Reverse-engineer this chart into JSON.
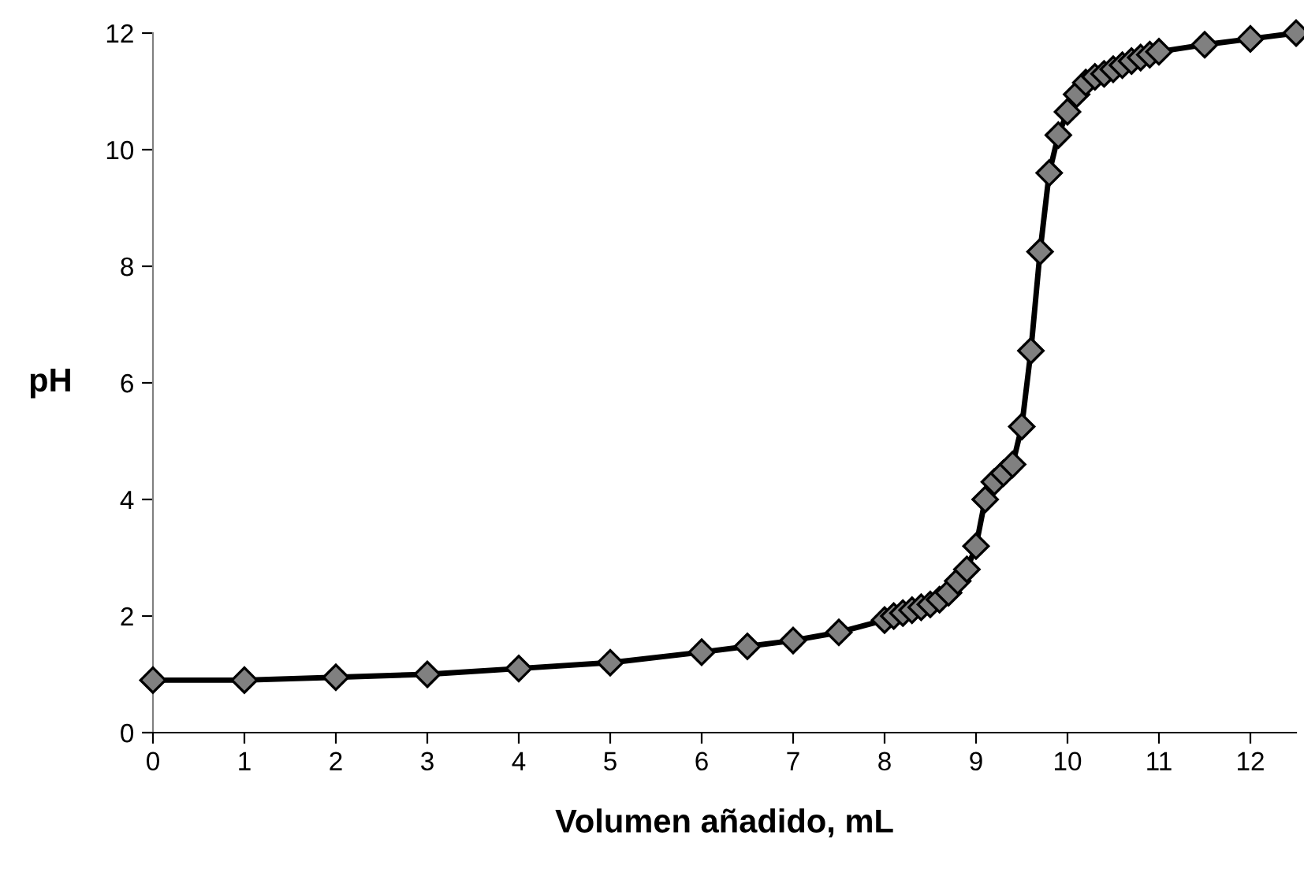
{
  "chart_data": {
    "type": "line",
    "xlabel": "Volumen añadido, mL",
    "ylabel": "pH",
    "x": [
      0,
      1,
      2,
      3,
      4,
      5,
      6,
      6.5,
      7,
      7.5,
      8,
      8.1,
      8.2,
      8.3,
      8.4,
      8.5,
      8.6,
      8.7,
      8.8,
      8.9,
      9.0,
      9.1,
      9.2,
      9.3,
      9.4,
      9.5,
      9.6,
      9.7,
      9.8,
      9.9,
      10.0,
      10.1,
      10.2,
      10.3,
      10.4,
      10.5,
      10.6,
      10.7,
      10.8,
      10.9,
      11.0,
      11.5,
      12,
      12.5
    ],
    "series": [
      {
        "color": "#808080",
        "values": [
          0.9,
          0.9,
          0.95,
          1.0,
          1.1,
          1.2,
          1.38,
          1.48,
          1.58,
          1.72,
          1.93,
          2.0,
          2.05,
          2.1,
          2.15,
          2.2,
          2.28,
          2.4,
          2.6,
          2.8,
          3.2,
          4.0,
          4.3,
          4.45,
          4.6,
          5.25,
          6.55,
          8.25,
          9.6,
          10.25,
          10.65,
          10.95,
          11.15,
          11.25,
          11.3,
          11.38,
          11.45,
          11.52,
          11.58,
          11.63,
          11.68,
          11.8,
          11.9,
          12.0
        ]
      }
    ],
    "xlim": [
      0,
      12.5
    ],
    "xticks": [
      0,
      1,
      2,
      3,
      4,
      5,
      6,
      7,
      8,
      9,
      10,
      11,
      12
    ],
    "ylim": [
      0,
      12
    ],
    "yticks": [
      0,
      2,
      4,
      6,
      8,
      10,
      12
    ],
    "marker": "diamond",
    "line_style": "solid",
    "grid": false,
    "legend": false
  }
}
